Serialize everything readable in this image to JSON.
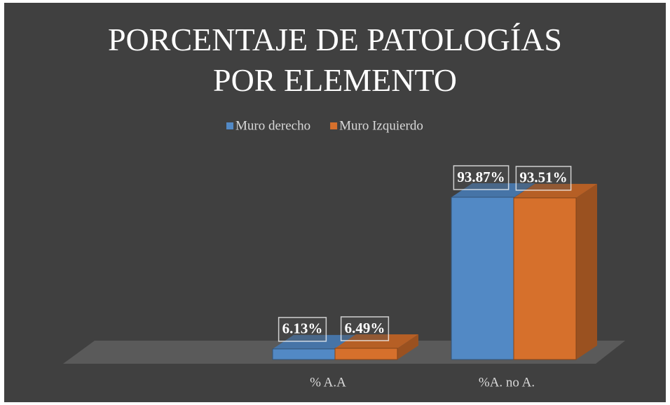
{
  "chart_data": {
    "type": "bar3d",
    "title": "PORCENTAJE DE PATOLOGÍAS POR ELEMENTO",
    "categories": [
      "% A.A",
      "%A. no A."
    ],
    "series": [
      {
        "name": "Muro derecho",
        "color": "#5289c5",
        "values": [
          6.13,
          93.87
        ],
        "value_labels": [
          "6.13%",
          "93.87%"
        ]
      },
      {
        "name": "Muro Izquierdo",
        "color": "#d6702c",
        "values": [
          6.49,
          93.51
        ],
        "value_labels": [
          "6.49%",
          "93.51%"
        ]
      }
    ],
    "legend": "top"
  }
}
